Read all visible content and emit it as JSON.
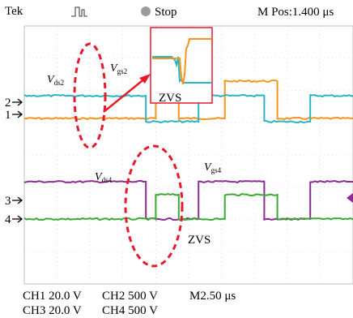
{
  "header": {
    "brand": "Tek",
    "status": "Stop",
    "position": "M Pos:1.400 μs"
  },
  "footer": {
    "ch1": "CH1 20.0 V",
    "ch2": "CH2 500 V",
    "timebase": "M2.50 μs",
    "ch3": "CH3 20.0 V",
    "ch4": "CH4 500 V"
  },
  "annotations": {
    "vds2_main": "V",
    "vds2_sub": "ds2",
    "vgs2_main": "V",
    "vgs2_sub": "gs2",
    "vds4_main": "V",
    "vds4_sub": "ds4",
    "vgs4_main": "V",
    "vgs4_sub": "gs4",
    "zvs_zoom": "ZVS",
    "zvs_lower": "ZVS"
  },
  "markers": {
    "ch2": "2",
    "ch1": "1",
    "ch3": "3",
    "ch4": "4"
  },
  "colors": {
    "ch1": "#f7941d",
    "ch2": "#2bb5c4",
    "ch3": "#8c2c94",
    "ch4": "#3aaa35",
    "highlight": "#e8192c",
    "grid": "#c8c8c8"
  },
  "chart_data": {
    "type": "line",
    "time_unit": "μs",
    "time_per_div": 2.5,
    "series": [
      {
        "channel": "CH1",
        "scale": "20.0 V",
        "segments": [
          [
            0,
            0.4,
            "low"
          ],
          [
            0.4,
            0.47,
            "high"
          ],
          [
            0.47,
            0.61,
            "low"
          ],
          [
            0.61,
            0.77,
            "high"
          ],
          [
            0.77,
            1.0,
            "low"
          ]
        ]
      },
      {
        "channel": "CH2",
        "scale": "500 V",
        "segments": [
          [
            0,
            0.37,
            "high"
          ],
          [
            0.37,
            0.53,
            "low"
          ],
          [
            0.53,
            0.73,
            "high"
          ],
          [
            0.73,
            0.87,
            "low"
          ],
          [
            0.87,
            1.0,
            "high"
          ]
        ]
      },
      {
        "channel": "CH3",
        "scale": "20.0 V",
        "segments": [
          [
            0,
            0.37,
            "high"
          ],
          [
            0.37,
            0.53,
            "low"
          ],
          [
            0.53,
            0.73,
            "high"
          ],
          [
            0.73,
            0.87,
            "low"
          ],
          [
            0.87,
            1.0,
            "high"
          ]
        ]
      },
      {
        "channel": "CH4",
        "scale": "500 V",
        "segments": [
          [
            0,
            0.4,
            "low"
          ],
          [
            0.4,
            0.47,
            "high"
          ],
          [
            0.47,
            0.61,
            "low"
          ],
          [
            0.61,
            0.77,
            "high"
          ],
          [
            0.77,
            1.0,
            "low"
          ]
        ]
      }
    ]
  }
}
